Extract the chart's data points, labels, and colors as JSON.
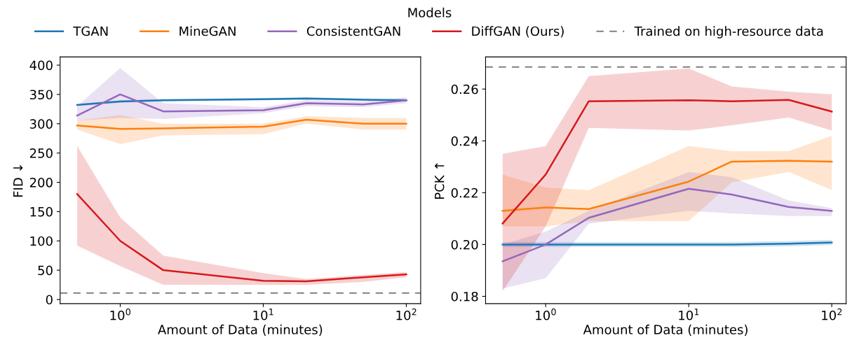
{
  "chart_data": [
    {
      "type": "line",
      "xlabel": "Amount of Data (minutes)",
      "ylabel": "FID ↓",
      "legend": "top",
      "legend_title": "Models",
      "log": "x",
      "grid": false,
      "x": [
        0.5,
        1,
        2,
        10,
        20,
        50,
        100
      ],
      "xlim": [
        0.38,
        126
      ],
      "xticks": [
        {
          "value": 1,
          "label": "10$^{0}$"
        },
        {
          "value": 10,
          "label": "10$^{1}$"
        },
        {
          "value": 100,
          "label": "10$^{2}$"
        }
      ],
      "ylim": [
        -7,
        414
      ],
      "yticks": [
        0,
        50,
        100,
        150,
        200,
        250,
        300,
        350,
        400
      ],
      "series": [
        {
          "name": "TGAN",
          "color": "#1f77b4",
          "values": [
            332,
            338,
            340,
            342,
            343,
            341,
            340
          ],
          "lower": [
            330,
            336,
            338,
            340,
            341,
            339,
            338
          ],
          "upper": [
            334,
            340,
            342,
            344,
            345,
            343,
            342
          ]
        },
        {
          "name": "MineGAN",
          "color": "#ff7f0e",
          "values": [
            297,
            291,
            292,
            295,
            307,
            300,
            300
          ],
          "lower": [
            290,
            265,
            280,
            282,
            300,
            290,
            290
          ],
          "upper": [
            305,
            315,
            300,
            300,
            313,
            310,
            310
          ]
        },
        {
          "name": "ConsistentGAN",
          "color": "#9467bd",
          "values": [
            314,
            350,
            321,
            323,
            335,
            333,
            340
          ],
          "lower": [
            305,
            310,
            308,
            318,
            330,
            328,
            335
          ],
          "upper": [
            330,
            395,
            335,
            328,
            340,
            338,
            345
          ]
        },
        {
          "name": "DiffGAN (Ours)",
          "color": "#d7191c",
          "values": [
            180,
            100,
            50,
            32,
            31,
            38,
            43
          ],
          "lower": [
            92,
            57,
            25,
            25,
            25,
            30,
            38
          ],
          "upper": [
            262,
            140,
            75,
            45,
            35,
            42,
            47
          ]
        }
      ],
      "ref_lines": [
        {
          "axis": "y",
          "value": 11,
          "label": "Trained on high-resource data",
          "color": "#808080",
          "line_style": "dashed"
        }
      ]
    },
    {
      "type": "line",
      "xlabel": "Amount of Data (minutes)",
      "ylabel": "PCK ↑",
      "log": "x",
      "grid": false,
      "x": [
        0.5,
        1,
        2,
        10,
        20,
        50,
        100
      ],
      "xlim": [
        0.38,
        126
      ],
      "xticks": [
        {
          "value": 1,
          "label": "10$^{0}$"
        },
        {
          "value": 10,
          "label": "10$^{1}$"
        },
        {
          "value": 100,
          "label": "10$^{2}$"
        }
      ],
      "ylim": [
        0.1772,
        0.2724
      ],
      "yticks": [
        {
          "value": 0.18,
          "label": "0.18"
        },
        {
          "value": 0.2,
          "label": "0.20"
        },
        {
          "value": 0.22,
          "label": "0.22"
        },
        {
          "value": 0.24,
          "label": "0.24"
        },
        {
          "value": 0.26,
          "label": "0.26"
        }
      ],
      "series": [
        {
          "color": "#1f77b4",
          "values": [
            0.2,
            0.2,
            0.2,
            0.2,
            0.2,
            0.2003,
            0.2008
          ],
          "lower": [
            0.199,
            0.199,
            0.199,
            0.199,
            0.199,
            0.1993,
            0.1998
          ],
          "upper": [
            0.201,
            0.201,
            0.201,
            0.201,
            0.201,
            0.2013,
            0.2018
          ]
        },
        {
          "color": "#ff7f0e",
          "values": [
            0.213,
            0.2143,
            0.2137,
            0.2243,
            0.232,
            0.2323,
            0.232
          ],
          "lower": [
            0.207,
            0.207,
            0.209,
            0.209,
            0.224,
            0.228,
            0.221
          ],
          "upper": [
            0.227,
            0.222,
            0.221,
            0.238,
            0.236,
            0.236,
            0.242
          ]
        },
        {
          "color": "#9467bd",
          "values": [
            0.1935,
            0.2,
            0.2103,
            0.2215,
            0.2193,
            0.2145,
            0.213
          ],
          "lower": [
            0.183,
            0.187,
            0.208,
            0.213,
            0.212,
            0.211,
            0.211
          ],
          "upper": [
            0.2,
            0.205,
            0.213,
            0.228,
            0.226,
            0.217,
            0.214
          ]
        },
        {
          "color": "#d7191c",
          "values": [
            0.2081,
            0.227,
            0.2553,
            0.2557,
            0.2553,
            0.2558,
            0.2513
          ],
          "lower": [
            0.182,
            0.207,
            0.245,
            0.244,
            0.246,
            0.249,
            0.244
          ],
          "upper": [
            0.235,
            0.238,
            0.265,
            0.268,
            0.261,
            0.259,
            0.258
          ]
        }
      ],
      "ref_lines": [
        {
          "axis": "y",
          "value": 0.2685,
          "color": "#808080",
          "line_style": "dashed"
        }
      ]
    }
  ]
}
